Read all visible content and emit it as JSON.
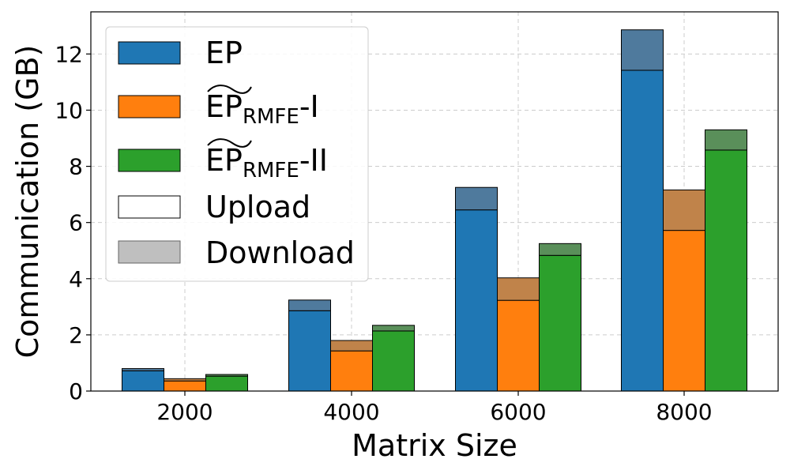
{
  "chart_data": {
    "type": "bar",
    "stacked_components": [
      "Upload",
      "Download"
    ],
    "categories": [
      "2000",
      "4000",
      "6000",
      "8000"
    ],
    "series": [
      {
        "name": "EP",
        "color": "#1f77b4",
        "download_color": "#4f7a9d",
        "upload": [
          0.72,
          2.86,
          6.45,
          11.42
        ],
        "download": [
          0.08,
          0.38,
          0.8,
          1.44
        ]
      },
      {
        "name": "EP_RMFE-I",
        "color": "#ff7f0e",
        "download_color": "#c0834a",
        "upload": [
          0.36,
          1.43,
          3.23,
          5.72
        ],
        "download": [
          0.08,
          0.37,
          0.8,
          1.44
        ]
      },
      {
        "name": "EP_RMFE-II",
        "color": "#2ca02c",
        "download_color": "#5a8f5a",
        "upload": [
          0.53,
          2.14,
          4.83,
          8.58
        ],
        "download": [
          0.06,
          0.2,
          0.42,
          0.72
        ]
      }
    ],
    "xlabel": "Matrix Size",
    "ylabel": "Communication (GB)",
    "ylim": [
      0,
      13.5
    ],
    "yticks": [
      "0",
      "2",
      "4",
      "6",
      "8",
      "10",
      "12"
    ],
    "grid": true,
    "legend_position": "top-left",
    "legend": {
      "ep": {
        "main": "EP"
      },
      "rmfe1": {
        "main": "EP",
        "sub": "RMFE",
        "suffix": "-I"
      },
      "rmfe2": {
        "main": "EP",
        "sub": "RMFE",
        "suffix": "-II"
      },
      "upload": {
        "label": "Upload",
        "color": "#ffffff"
      },
      "download": {
        "label": "Download",
        "color": "#bfbfbf"
      }
    }
  }
}
